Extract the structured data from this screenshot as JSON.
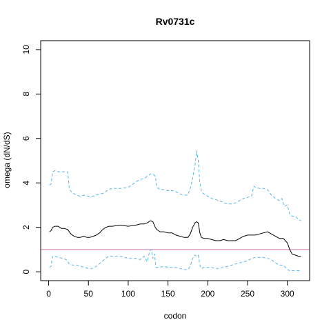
{
  "chart_data": {
    "type": "line",
    "title": "Rv0731c",
    "xlabel": "codon",
    "ylabel": "omega (dN/dS)",
    "xlim": [
      -10,
      328
    ],
    "ylim": [
      -0.4,
      10.4
    ],
    "x_ticks": [
      0,
      50,
      100,
      150,
      200,
      250,
      300
    ],
    "y_ticks": [
      0,
      2,
      4,
      6,
      8,
      10
    ],
    "grid": false,
    "reference_line": {
      "y": 1,
      "color": "#cc79a7"
    },
    "series": [
      {
        "role": "upper-bound",
        "color": "#56b4e9",
        "dash": "dashed",
        "x": [
          1,
          3,
          5,
          8,
          12,
          18,
          24,
          26,
          30,
          35,
          40,
          45,
          50,
          55,
          60,
          65,
          70,
          75,
          80,
          90,
          100,
          110,
          115,
          120,
          124,
          128,
          131,
          134,
          136,
          140,
          145,
          150,
          155,
          160,
          165,
          170,
          175,
          178,
          181,
          184,
          186,
          188,
          190,
          192,
          195,
          200,
          205,
          210,
          215,
          220,
          225,
          230,
          235,
          240,
          245,
          250,
          255,
          258,
          260,
          265,
          270,
          275,
          280,
          285,
          290,
          293,
          296,
          300,
          303,
          306,
          310,
          314,
          317
        ],
        "y": [
          3.9,
          3.95,
          4.5,
          4.55,
          4.5,
          4.5,
          4.5,
          3.7,
          3.55,
          3.45,
          3.4,
          3.45,
          3.4,
          3.4,
          3.45,
          3.5,
          3.55,
          3.7,
          3.75,
          3.75,
          3.8,
          4.05,
          4.15,
          4.2,
          4.3,
          4.4,
          4.4,
          4.3,
          3.8,
          3.7,
          3.7,
          3.65,
          3.65,
          3.6,
          3.5,
          3.45,
          3.45,
          3.75,
          4.2,
          4.8,
          5.45,
          5.0,
          4.0,
          3.6,
          3.5,
          3.4,
          3.3,
          3.25,
          3.2,
          3.1,
          3.05,
          3.05,
          3.1,
          3.2,
          3.3,
          3.35,
          3.4,
          3.85,
          3.8,
          3.75,
          3.75,
          3.7,
          3.45,
          3.3,
          3.2,
          3.3,
          2.95,
          3.0,
          2.6,
          2.5,
          2.5,
          2.35,
          2.3
        ]
      },
      {
        "role": "estimate",
        "color": "#000000",
        "dash": "solid",
        "x": [
          1,
          3,
          5,
          8,
          12,
          16,
          20,
          24,
          28,
          32,
          36,
          40,
          44,
          48,
          52,
          56,
          60,
          64,
          68,
          72,
          76,
          80,
          90,
          100,
          110,
          115,
          120,
          124,
          128,
          131,
          134,
          136,
          140,
          145,
          150,
          155,
          160,
          165,
          170,
          175,
          178,
          181,
          184,
          186,
          188,
          190,
          192,
          195,
          200,
          205,
          210,
          215,
          220,
          225,
          230,
          235,
          240,
          245,
          250,
          255,
          260,
          265,
          270,
          275,
          280,
          285,
          290,
          295,
          300,
          303,
          306,
          310,
          314,
          317
        ],
        "y": [
          1.8,
          1.85,
          2.0,
          2.05,
          2.05,
          1.95,
          1.95,
          1.9,
          1.7,
          1.6,
          1.55,
          1.55,
          1.6,
          1.55,
          1.55,
          1.6,
          1.65,
          1.75,
          1.9,
          2.0,
          2.05,
          2.05,
          2.1,
          2.05,
          2.1,
          2.15,
          2.15,
          2.2,
          2.3,
          2.25,
          2.0,
          1.9,
          1.8,
          1.8,
          1.75,
          1.75,
          1.65,
          1.6,
          1.55,
          1.55,
          1.7,
          2.0,
          2.2,
          2.25,
          2.2,
          1.75,
          1.55,
          1.5,
          1.5,
          1.45,
          1.4,
          1.4,
          1.45,
          1.4,
          1.4,
          1.4,
          1.5,
          1.6,
          1.65,
          1.65,
          1.65,
          1.7,
          1.75,
          1.8,
          1.7,
          1.6,
          1.5,
          1.5,
          1.3,
          1.0,
          0.8,
          0.75,
          0.7,
          0.7
        ]
      },
      {
        "role": "lower-bound",
        "color": "#56b4e9",
        "dash": "dashed",
        "x": [
          1,
          3,
          5,
          8,
          12,
          18,
          22,
          26,
          30,
          35,
          40,
          45,
          50,
          55,
          60,
          65,
          70,
          75,
          80,
          90,
          100,
          110,
          115,
          120,
          124,
          127,
          129,
          131,
          133,
          135,
          140,
          145,
          150,
          155,
          160,
          165,
          170,
          175,
          178,
          181,
          184,
          186,
          188,
          190,
          192,
          195,
          200,
          205,
          210,
          215,
          220,
          225,
          230,
          235,
          240,
          245,
          250,
          255,
          260,
          265,
          270,
          275,
          280,
          285,
          290,
          295,
          300,
          303,
          306,
          310,
          314,
          317
        ],
        "y": [
          0.2,
          0.25,
          0.7,
          0.7,
          0.65,
          0.6,
          0.55,
          0.35,
          0.3,
          0.3,
          0.25,
          0.2,
          0.15,
          0.15,
          0.25,
          0.4,
          0.55,
          0.7,
          0.7,
          0.7,
          0.6,
          0.6,
          0.55,
          0.7,
          0.45,
          0.95,
          1.0,
          0.6,
          0.8,
          0.2,
          0.2,
          0.25,
          0.2,
          0.2,
          0.2,
          0.15,
          0.1,
          0.1,
          0.25,
          0.6,
          0.75,
          0.7,
          0.75,
          0.3,
          0.15,
          0.2,
          0.2,
          0.2,
          0.15,
          0.15,
          0.2,
          0.25,
          0.3,
          0.35,
          0.4,
          0.45,
          0.5,
          0.6,
          0.65,
          0.65,
          0.65,
          0.6,
          0.55,
          0.4,
          0.3,
          0.3,
          0.1,
          0.05,
          0.05,
          0.05,
          0.05,
          0.05
        ]
      }
    ]
  }
}
